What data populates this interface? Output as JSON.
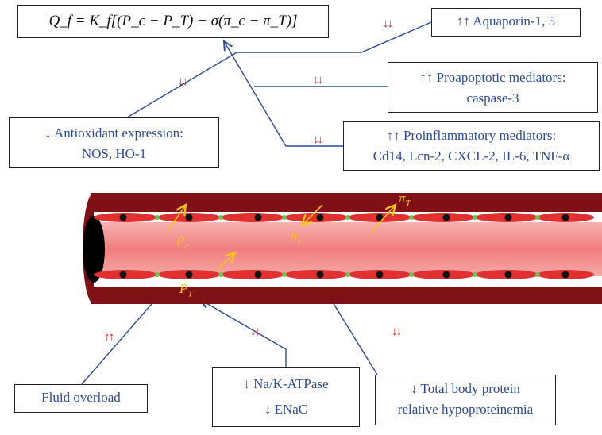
{
  "equation": {
    "text": "Q_f = K_f[(P_c − P_T) − σ(π_c − π_T)]"
  },
  "boxes": {
    "aquaporin": "↑↑ Aquaporin-1, 5",
    "proapoptotic_line1": "↑↑ Proapoptotic mediators:",
    "proapoptotic_line2": "caspase-3",
    "antioxidant_line1": "↓ Antioxidant expression:",
    "antioxidant_line2": "NOS, HO-1",
    "proinflammatory_line1": "↑↑ Proinflammatory mediators:",
    "proinflammatory_line2": "Cd14, Lcn-2, CXCL-2, IL-6, TNF-α",
    "fluid_overload": "Fluid overload",
    "nak_line1": "↓ Na/K-ATPase",
    "nak_line2": "↓ ENaC",
    "protein_line1": "↓ Total body protein",
    "protein_line2": "relative hypoproteinemia"
  },
  "indicators": {
    "down_down": "↓↓",
    "up_up": "↑↑"
  },
  "vessel_labels": {
    "pc": "P",
    "pc_sub": "c",
    "pt": "P",
    "pt_sub": "T",
    "pic": "π",
    "pic_sub": "c",
    "pit": "π",
    "pit_sub": "T"
  },
  "colors": {
    "vessel_wall": "#7e1016",
    "lumen": "#f08a8a",
    "cell": "#e03030",
    "nucleus": "#111111",
    "junction": "#6ec24a",
    "annotation_arrow": "#f5c518",
    "connector": "#2a4a9a",
    "down_arrow": "#e02020"
  }
}
